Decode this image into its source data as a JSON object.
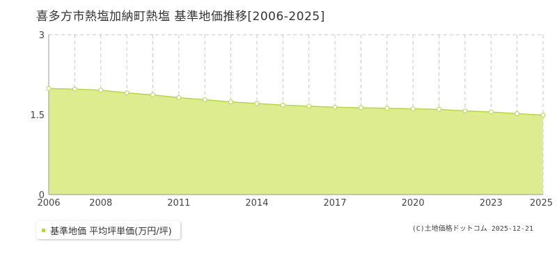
{
  "title": "喜多方市熱塩加納町熱塩 基準地価推移[2006-2025]",
  "legend_label": "基準地価 平均坪単価(万円/坪)",
  "copyright": "(C)土地価格ドットコム 2025-12-21",
  "colors": {
    "area_fill": "#dcec8f",
    "line": "#b6d64a",
    "marker_fill": "#ffffff",
    "grid": "#c8c8c8",
    "axis": "#999999"
  },
  "chart_data": {
    "type": "area",
    "series": [
      {
        "name": "基準地価 平均坪単価(万円/坪)",
        "x": [
          2006,
          2007,
          2008,
          2009,
          2010,
          2011,
          2012,
          2013,
          2014,
          2015,
          2016,
          2017,
          2018,
          2019,
          2020,
          2021,
          2022,
          2023,
          2024,
          2025
        ],
        "values": [
          1.99,
          1.98,
          1.96,
          1.91,
          1.87,
          1.82,
          1.78,
          1.74,
          1.71,
          1.68,
          1.66,
          1.64,
          1.63,
          1.62,
          1.61,
          1.6,
          1.57,
          1.55,
          1.52,
          1.49
        ]
      }
    ],
    "xlim": [
      2006,
      2025
    ],
    "ylim": [
      0,
      3
    ],
    "yticks": [
      "0",
      "1.5",
      "3"
    ],
    "xticks": [
      "2006",
      "2008",
      "2011",
      "2014",
      "2017",
      "2020",
      "2023",
      "2025"
    ],
    "grid": true,
    "legend_position": "bottom-left"
  }
}
